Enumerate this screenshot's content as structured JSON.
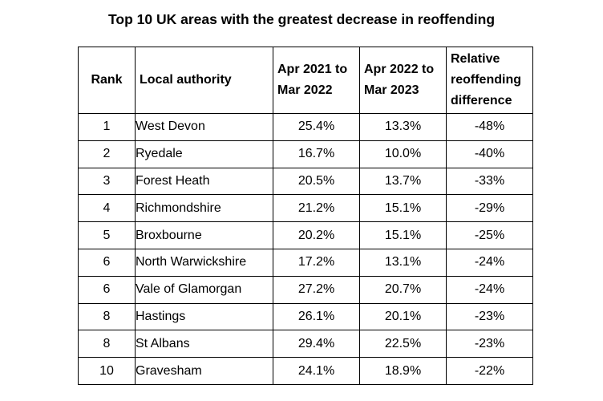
{
  "title": "Top 10 UK areas with the greatest decrease in reoffending",
  "headers": {
    "rank": "Rank",
    "authority": "Local authority",
    "period1_line1": "Apr 2021 to",
    "period1_line2": "Mar 2022",
    "period2_line1": "Apr 2022 to",
    "period2_line2": "Mar 2023",
    "diff_line1": "Relative",
    "diff_line2": "reoffending",
    "diff_line3": "difference"
  },
  "rows": [
    {
      "rank": "1",
      "authority": "West Devon",
      "period1": "25.4%",
      "period2": "13.3%",
      "diff": "-48%"
    },
    {
      "rank": "2",
      "authority": "Ryedale",
      "period1": "16.7%",
      "period2": "10.0%",
      "diff": "-40%"
    },
    {
      "rank": "3",
      "authority": "Forest Heath",
      "period1": "20.5%",
      "period2": "13.7%",
      "diff": "-33%"
    },
    {
      "rank": "4",
      "authority": "Richmondshire",
      "period1": "21.2%",
      "period2": "15.1%",
      "diff": "-29%"
    },
    {
      "rank": "5",
      "authority": "Broxbourne",
      "period1": "20.2%",
      "period2": "15.1%",
      "diff": "-25%"
    },
    {
      "rank": "6",
      "authority": "North Warwickshire",
      "period1": "17.2%",
      "period2": "13.1%",
      "diff": "-24%"
    },
    {
      "rank": "6",
      "authority": "Vale of Glamorgan",
      "period1": "27.2%",
      "period2": "20.7%",
      "diff": "-24%"
    },
    {
      "rank": "8",
      "authority": "Hastings",
      "period1": "26.1%",
      "period2": "20.1%",
      "diff": "-23%"
    },
    {
      "rank": "8",
      "authority": "St Albans",
      "period1": "29.4%",
      "period2": "22.5%",
      "diff": "-23%"
    },
    {
      "rank": "10",
      "authority": "Gravesham",
      "period1": "24.1%",
      "period2": "18.9%",
      "diff": "-22%"
    }
  ]
}
